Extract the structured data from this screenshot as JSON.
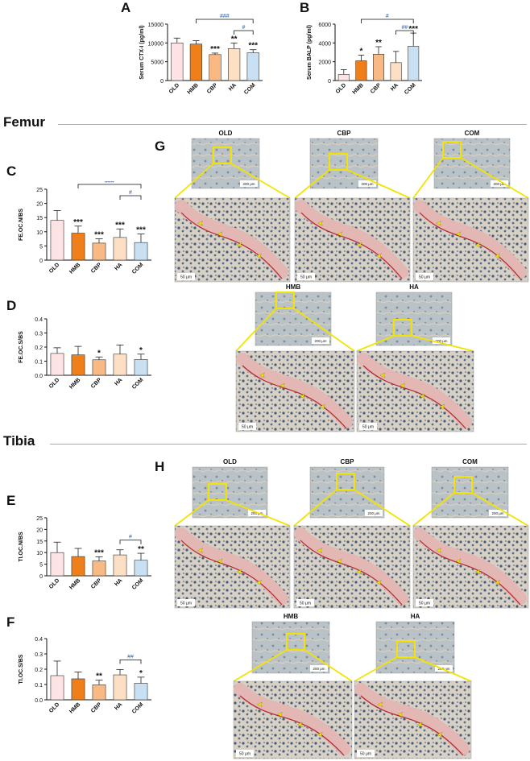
{
  "panels": {
    "A": "A",
    "B": "B",
    "C": "C",
    "D": "D",
    "E": "E",
    "F": "F",
    "G": "G",
    "H": "H"
  },
  "sections": {
    "femur": "Femur",
    "tibia": "Tibia"
  },
  "colors": [
    "#fde3e3",
    "#ef7f1a",
    "#f8b984",
    "#fde0c4",
    "#c9dff2"
  ],
  "chart_data": [
    {
      "id": "A",
      "type": "bar",
      "categories": [
        "OLD",
        "HMB",
        "CBP",
        "HA",
        "COM"
      ],
      "values": [
        10000,
        9700,
        6900,
        8500,
        7400
      ],
      "errors": [
        1300,
        900,
        400,
        1500,
        800
      ],
      "ylabel": "Serum CTX-I (pg/ml)",
      "ylim": [
        0,
        15000
      ],
      "yticks": [
        0,
        5000,
        10000,
        15000
      ],
      "ytick_labels": [
        "0",
        "5000",
        "10000",
        "15000"
      ],
      "stars": [
        "",
        "",
        "***",
        "**",
        "***"
      ],
      "brackets": [
        {
          "from": 1,
          "to": 4,
          "label": "###"
        },
        {
          "from": 3,
          "to": 4,
          "label": "#"
        }
      ]
    },
    {
      "id": "B",
      "type": "bar",
      "categories": [
        "OLD",
        "HMB",
        "CBP",
        "HA",
        "COM"
      ],
      "values": [
        650,
        2100,
        2800,
        1900,
        3650
      ],
      "errors": [
        500,
        600,
        800,
        1200,
        1400
      ],
      "ylabel": "Serum BALP (pg/ml)",
      "ylim": [
        0,
        6000
      ],
      "yticks": [
        0,
        2000,
        4000,
        6000
      ],
      "ytick_labels": [
        "0",
        "2000",
        "4000",
        "6000"
      ],
      "stars": [
        "",
        "*",
        "**",
        "",
        "***"
      ],
      "brackets": [
        {
          "from": 1,
          "to": 4,
          "label": "#"
        },
        {
          "from": 3,
          "to": 4,
          "label": "##"
        }
      ]
    },
    {
      "id": "C",
      "type": "bar",
      "categories": [
        "OLD",
        "HMB",
        "CBP",
        "HA",
        "COM"
      ],
      "values": [
        14,
        9.5,
        6,
        8,
        6.2
      ],
      "errors": [
        3.5,
        2.5,
        1.5,
        3,
        3
      ],
      "ylabel": "FE.OC.N/BS",
      "ylim": [
        0,
        25
      ],
      "yticks": [
        0,
        5,
        10,
        15,
        20,
        25
      ],
      "ytick_labels": [
        "0",
        "5",
        "10",
        "15",
        "20",
        "25"
      ],
      "stars": [
        "",
        "***",
        "***",
        "***",
        "***"
      ],
      "brackets": [
        {
          "from": 1,
          "to": 4,
          "label": "###"
        },
        {
          "from": 3,
          "to": 4,
          "label": "#"
        }
      ]
    },
    {
      "id": "D",
      "type": "bar",
      "categories": [
        "OLD",
        "HMB",
        "CBP",
        "HA",
        "COM"
      ],
      "values": [
        0.155,
        0.145,
        0.11,
        0.15,
        0.112
      ],
      "errors": [
        0.04,
        0.06,
        0.02,
        0.065,
        0.038
      ],
      "ylabel": "FE.OC.S/BS",
      "ylim": [
        0,
        0.4
      ],
      "yticks": [
        0,
        0.1,
        0.2,
        0.3,
        0.4
      ],
      "ytick_labels": [
        "0.0",
        "0.1",
        "0.2",
        "0.3",
        "0.4"
      ],
      "stars": [
        "",
        "",
        "*",
        "",
        "*"
      ],
      "brackets": []
    },
    {
      "id": "E",
      "type": "bar",
      "categories": [
        "OLD",
        "HMB",
        "CBP",
        "HA",
        "COM"
      ],
      "values": [
        10,
        8.3,
        6.4,
        9,
        6.7
      ],
      "errors": [
        4.5,
        3.5,
        1.8,
        2.2,
        3
      ],
      "ylabel": "TI.OC.N/BS",
      "ylim": [
        0,
        25
      ],
      "yticks": [
        0,
        5,
        10,
        15,
        20,
        25
      ],
      "ytick_labels": [
        "0",
        "5",
        "10",
        "15",
        "20",
        "25"
      ],
      "stars": [
        "",
        "",
        "***",
        "",
        "**"
      ],
      "brackets": [
        {
          "from": 3,
          "to": 4,
          "label": "#"
        }
      ]
    },
    {
      "id": "F",
      "type": "bar",
      "categories": [
        "OLD",
        "HMB",
        "CBP",
        "HA",
        "COM"
      ],
      "values": [
        0.158,
        0.137,
        0.098,
        0.163,
        0.108
      ],
      "errors": [
        0.095,
        0.045,
        0.03,
        0.035,
        0.04
      ],
      "ylabel": "TI.OC.S/BS",
      "ylim": [
        0,
        0.4
      ],
      "yticks": [
        0,
        0.1,
        0.2,
        0.3,
        0.4
      ],
      "ytick_labels": [
        "0.0",
        "0.1",
        "0.2",
        "0.3",
        "0.4"
      ],
      "stars": [
        "",
        "",
        "**",
        "",
        "*"
      ],
      "brackets": [
        {
          "from": 3,
          "to": 4,
          "label": "##"
        }
      ]
    }
  ],
  "micrographs": {
    "femur": {
      "tiles": [
        {
          "group": "OLD",
          "overview_scale": "200 μm",
          "detail_scale": "50 μm"
        },
        {
          "group": "CBP",
          "overview_scale": "200 μm",
          "detail_scale": "50 μm"
        },
        {
          "group": "COM",
          "overview_scale": "200 μm",
          "detail_scale": "50 μm"
        },
        {
          "group": "HMB",
          "overview_scale": "200 μm",
          "detail_scale": "50 μm"
        },
        {
          "group": "HA",
          "overview_scale": "200 μm",
          "detail_scale": "50 μm"
        }
      ]
    },
    "tibia": {
      "tiles": [
        {
          "group": "OLD",
          "overview_scale": "200 μm",
          "detail_scale": "50 μm"
        },
        {
          "group": "CBP",
          "overview_scale": "200 μm",
          "detail_scale": "50 μm"
        },
        {
          "group": "COM",
          "overview_scale": "200 μm",
          "detail_scale": "50 μm"
        },
        {
          "group": "HMB",
          "overview_scale": "200 μm",
          "detail_scale": "50 μm"
        },
        {
          "group": "HA",
          "overview_scale": "200 μm",
          "detail_scale": "50 μm"
        }
      ]
    }
  }
}
